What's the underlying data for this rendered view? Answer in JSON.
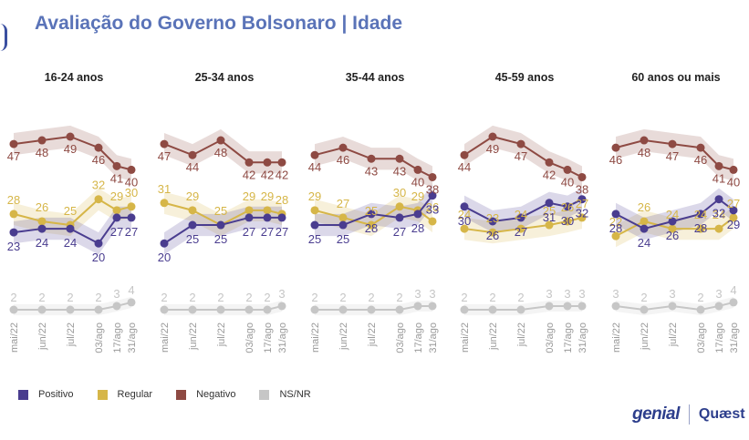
{
  "title": "Avaliação do Governo Bolsonaro | Idade",
  "legend": [
    {
      "key": "positivo",
      "label": "Positivo",
      "color": "#4a3d8f"
    },
    {
      "key": "regular",
      "label": "Regular",
      "color": "#d6b648"
    },
    {
      "key": "negativo",
      "label": "Negativo",
      "color": "#8e4a43"
    },
    {
      "key": "nsnr",
      "label": "NS/NR",
      "color": "#c6c6c6"
    }
  ],
  "logos": {
    "left": "genial",
    "right": "Quæst"
  },
  "chart_data": [
    {
      "type": "line",
      "title": "16-24 anos",
      "x": [
        "mai/22",
        "jun/22",
        "jul/22",
        "03/ago",
        "17/ago",
        "31/ago"
      ],
      "series": [
        {
          "name": "Positivo",
          "values": [
            23,
            24,
            24,
            20,
            27,
            27
          ]
        },
        {
          "name": "Regular",
          "values": [
            28,
            26,
            25,
            32,
            29,
            30
          ]
        },
        {
          "name": "Negativo",
          "values": [
            47,
            48,
            49,
            46,
            41,
            40
          ]
        },
        {
          "name": "NS/NR",
          "values": [
            2,
            2,
            2,
            2,
            3,
            4
          ]
        }
      ]
    },
    {
      "type": "line",
      "title": "25-34 anos",
      "x": [
        "mai/22",
        "jun/22",
        "jul/22",
        "03/ago",
        "17/ago",
        "31/ago"
      ],
      "series": [
        {
          "name": "Positivo",
          "values": [
            20,
            25,
            25,
            27,
            27,
            27
          ]
        },
        {
          "name": "Regular",
          "values": [
            31,
            29,
            25,
            29,
            29,
            28
          ]
        },
        {
          "name": "Negativo",
          "values": [
            47,
            44,
            48,
            42,
            42,
            42
          ]
        },
        {
          "name": "NS/NR",
          "values": [
            2,
            2,
            2,
            2,
            2,
            3
          ]
        }
      ]
    },
    {
      "type": "line",
      "title": "35-44 anos",
      "x": [
        "mai/22",
        "jun/22",
        "jul/22",
        "03/ago",
        "17/ago",
        "31/ago"
      ],
      "series": [
        {
          "name": "Positivo",
          "values": [
            25,
            25,
            28,
            27,
            28,
            33
          ]
        },
        {
          "name": "Regular",
          "values": [
            29,
            27,
            25,
            30,
            29,
            26
          ]
        },
        {
          "name": "Negativo",
          "values": [
            44,
            46,
            43,
            43,
            40,
            38
          ]
        },
        {
          "name": "NS/NR",
          "values": [
            2,
            2,
            2,
            2,
            3,
            3
          ]
        }
      ]
    },
    {
      "type": "line",
      "title": "45-59 anos",
      "x": [
        "mai/22",
        "jun/22",
        "jul/22",
        "03/ago",
        "17/ago",
        "31/ago"
      ],
      "series": [
        {
          "name": "Positivo",
          "values": [
            30,
            26,
            27,
            31,
            30,
            32
          ]
        },
        {
          "name": "Regular",
          "values": [
            24,
            23,
            24,
            25,
            26,
            27
          ]
        },
        {
          "name": "Negativo",
          "values": [
            44,
            49,
            47,
            42,
            40,
            38
          ]
        },
        {
          "name": "NS/NR",
          "values": [
            2,
            2,
            2,
            3,
            3,
            3
          ]
        }
      ]
    },
    {
      "type": "line",
      "title": "60 anos ou mais",
      "x": [
        "mai/22",
        "jun/22",
        "jul/22",
        "03/ago",
        "17/ago",
        "31/ago"
      ],
      "series": [
        {
          "name": "Positivo",
          "values": [
            28,
            24,
            26,
            28,
            32,
            29
          ]
        },
        {
          "name": "Regular",
          "values": [
            22,
            26,
            24,
            24,
            24,
            27
          ]
        },
        {
          "name": "Negativo",
          "values": [
            46,
            48,
            47,
            46,
            41,
            40
          ]
        },
        {
          "name": "NS/NR",
          "values": [
            3,
            2,
            3,
            2,
            3,
            4
          ]
        }
      ]
    }
  ]
}
